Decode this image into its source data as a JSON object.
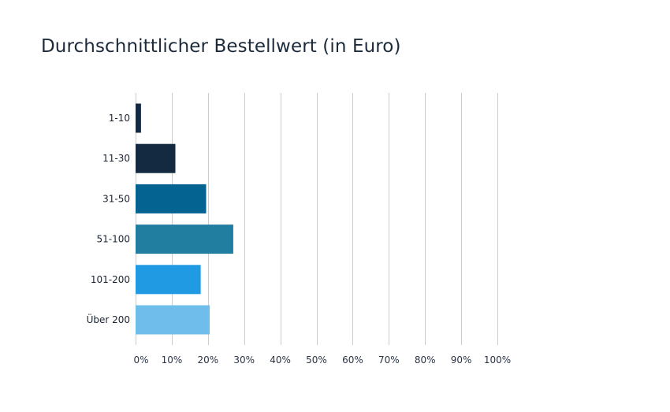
{
  "chart_data": {
    "type": "bar",
    "orientation": "horizontal",
    "title": "Durchschnittlicher Bestellwert (in Euro)",
    "xlabel": "",
    "ylabel": "",
    "xlim": [
      0,
      100
    ],
    "grid": true,
    "categories": [
      "1-10",
      "11-30",
      "31-50",
      "51-100",
      "101-200",
      "Über 200"
    ],
    "values": [
      1.5,
      11,
      19.5,
      27,
      18,
      20.5
    ],
    "colors": [
      "#142a40",
      "#142a40",
      "#046391",
      "#217ea0",
      "#219ae4",
      "#6ebdea"
    ],
    "ticks": [
      0,
      10,
      20,
      30,
      40,
      50,
      60,
      70,
      80,
      90,
      100
    ],
    "tick_labels": [
      "0%",
      "10%",
      "20%",
      "30%",
      "40%",
      "50%",
      "60%",
      "70%",
      "80%",
      "90%",
      "100%"
    ]
  }
}
